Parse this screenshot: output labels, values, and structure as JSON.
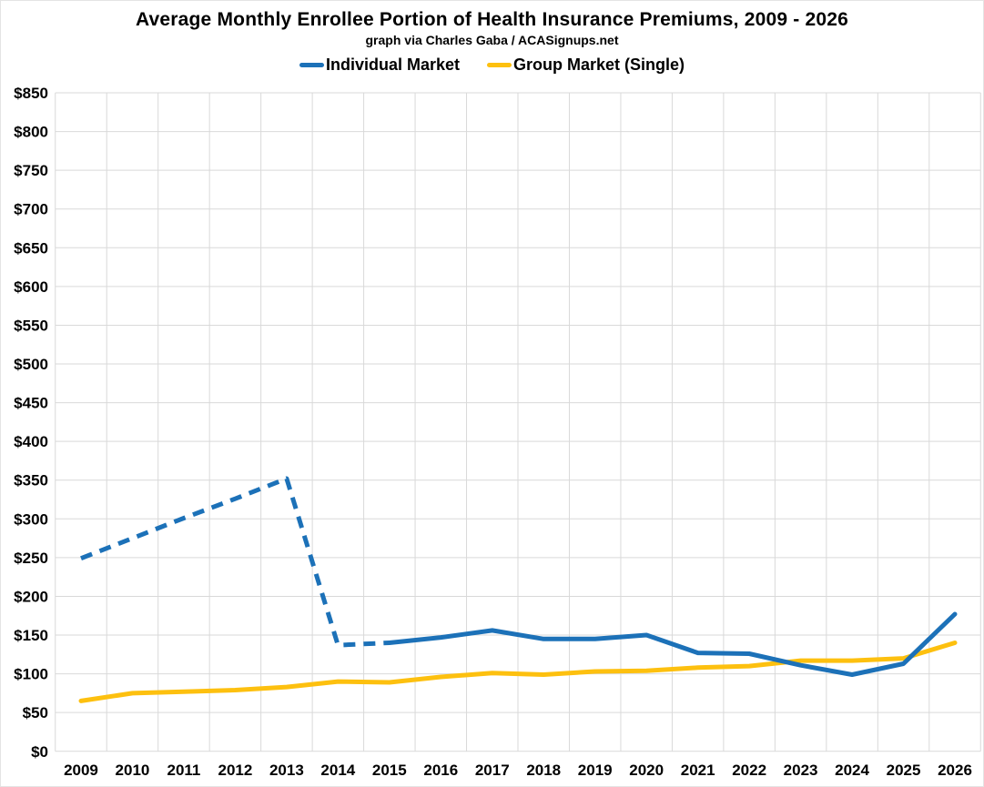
{
  "header": {
    "title": "Average Monthly Enrollee Portion of Health Insurance Premiums, 2009 - 2026",
    "subtitle": "graph via Charles Gaba / ACASignups.net"
  },
  "legend": [
    {
      "label": "Individual Market",
      "color": "#1c71b8"
    },
    {
      "label": "Group Market (Single)",
      "color": "#fdc00f"
    }
  ],
  "chart_data": {
    "type": "line",
    "title": "Average Monthly Enrollee Portion of Health Insurance Premiums, 2009 - 2026",
    "subtitle": "graph via Charles Gaba / ACASignups.net",
    "categories": [
      "2009",
      "2010",
      "2011",
      "2012",
      "2013",
      "2014",
      "2015",
      "2016",
      "2017",
      "2018",
      "2019",
      "2020",
      "2021",
      "2022",
      "2023",
      "2024",
      "2025",
      "2026"
    ],
    "series": [
      {
        "name": "Individual Market",
        "color": "#1c71b8",
        "values": [
          249,
          275,
          301,
          326,
          352,
          137,
          140,
          147,
          156,
          145,
          145,
          150,
          127,
          126,
          111,
          99,
          113,
          177
        ],
        "line_style": "dashed from 2009 through 2015, solid from 2015 through 2026",
        "dashed_through_index": 6
      },
      {
        "name": "Group Market (Single)",
        "color": "#fdc00f",
        "values": [
          65,
          75,
          77,
          79,
          83,
          90,
          89,
          96,
          101,
          99,
          103,
          104,
          108,
          110,
          117,
          117,
          120,
          140
        ],
        "line_style": "solid",
        "dashed_through_index": 0
      }
    ],
    "xlabel": "",
    "ylabel": "",
    "ylim": [
      0,
      850
    ],
    "ytick_step": 50,
    "ytick_labels": [
      "$0",
      "$50",
      "$100",
      "$150",
      "$200",
      "$250",
      "$300",
      "$350",
      "$400",
      "$450",
      "$500",
      "$550",
      "$600",
      "$650",
      "$700",
      "$750",
      "$800",
      "$850"
    ],
    "grid": true,
    "gridline_color": "#d9d9d9",
    "legend_position": "top-center",
    "background": "#ffffff"
  }
}
